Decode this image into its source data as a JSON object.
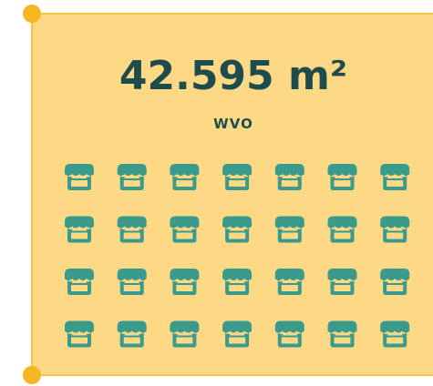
{
  "header": {
    "title": "42.595 m²",
    "subtitle": "WVO"
  }
}
